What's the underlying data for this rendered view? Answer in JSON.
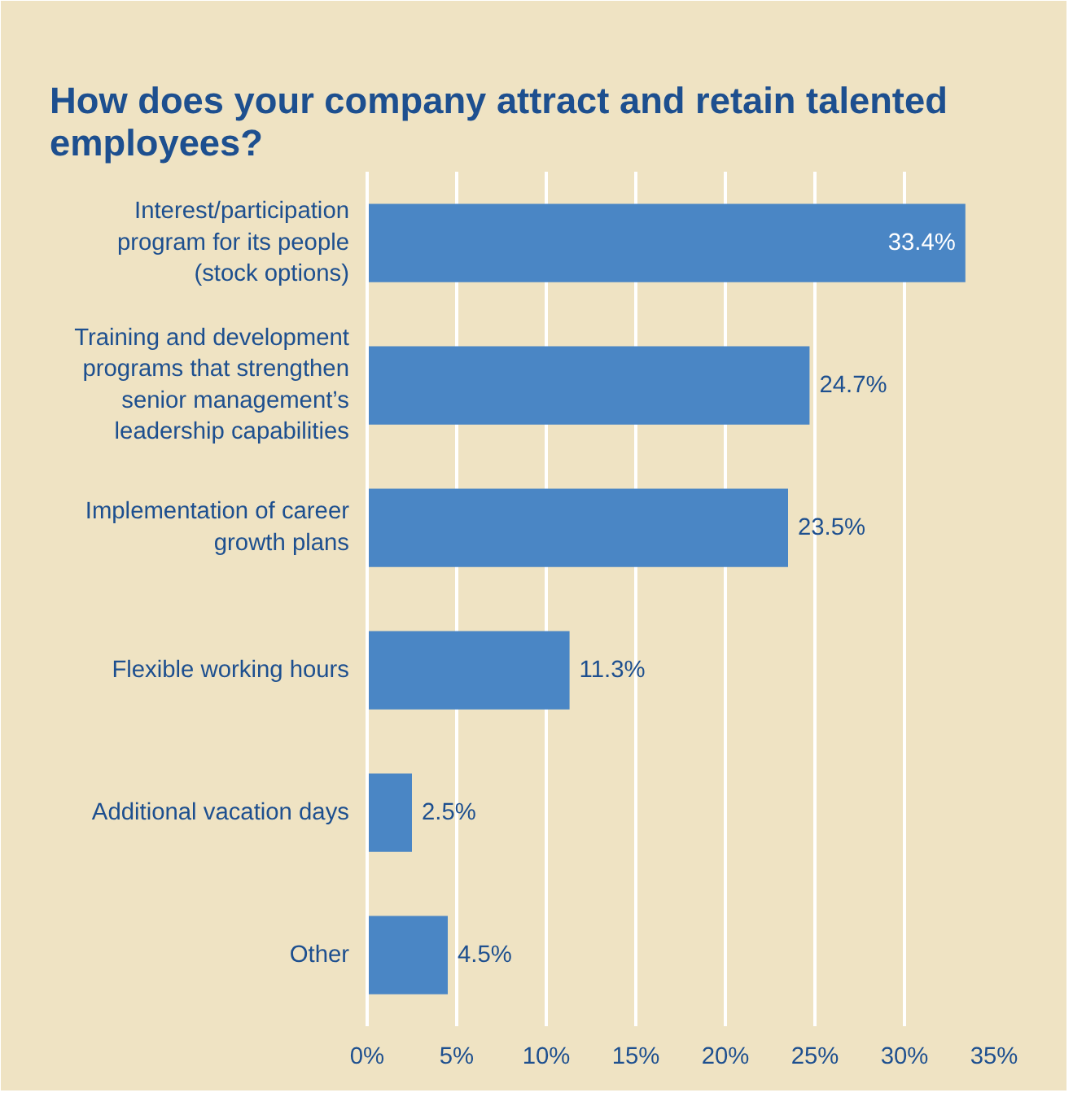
{
  "chart_data": {
    "type": "bar",
    "orientation": "horizontal",
    "title": "How does your company attract and retain talented employees?",
    "categories": [
      "Interest/participation program for its people (stock options)",
      "Training and development programs that strengthen senior management’s leadership capabilities",
      "Implementation of career growth plans",
      "Flexible working hours",
      "Additional vacation days",
      "Other"
    ],
    "values": [
      33.4,
      24.7,
      23.5,
      11.3,
      2.5,
      4.5
    ],
    "value_labels": [
      "33.4%",
      "24.7%",
      "23.5%",
      "11.3%",
      "2.5%",
      "4.5%"
    ],
    "color": "#4a86c5",
    "xlim": [
      0,
      35
    ],
    "xticks": [
      {
        "value": 0,
        "label": "0%"
      },
      {
        "value": 5,
        "label": "5%"
      },
      {
        "value": 10,
        "label": "10%"
      },
      {
        "value": 15,
        "label": "15%"
      },
      {
        "value": 20,
        "label": "20%"
      },
      {
        "value": 25,
        "label": "25%"
      },
      {
        "value": 30,
        "label": "30%"
      },
      {
        "value": 35,
        "label": "35%"
      }
    ],
    "grid": "x"
  }
}
